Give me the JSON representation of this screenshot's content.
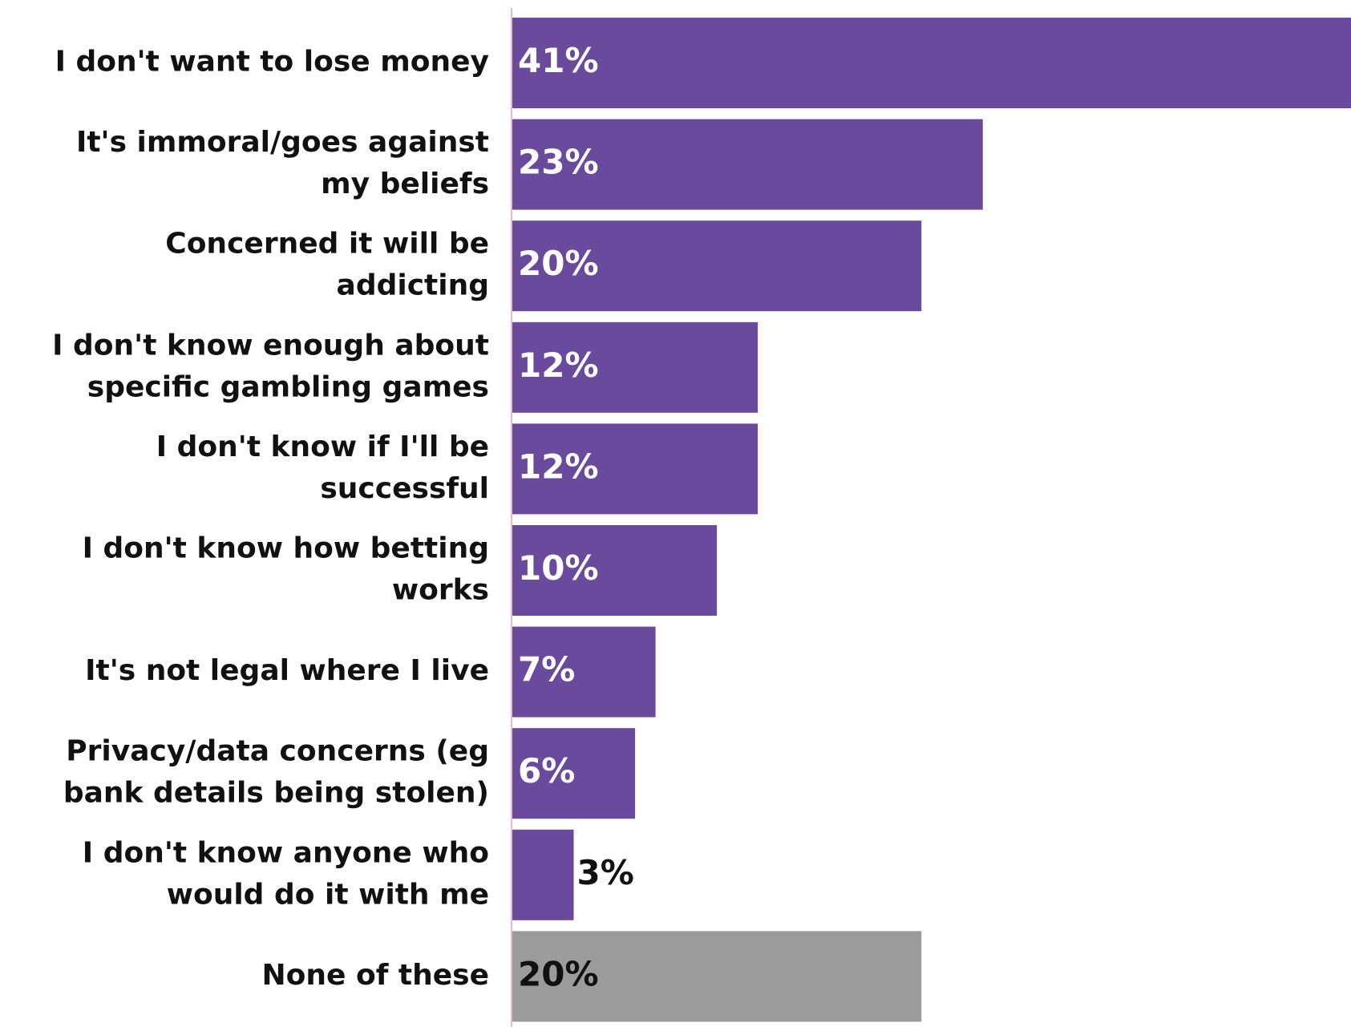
{
  "chart_data": {
    "type": "bar",
    "orientation": "horizontal",
    "categories": [
      [
        "I don't want to lose money"
      ],
      [
        "It's immoral/goes against",
        "my beliefs"
      ],
      [
        "Concerned it will be",
        "addicting"
      ],
      [
        "I don't know enough about",
        "specific gambling games"
      ],
      [
        "I don't know if I'll be",
        "successful"
      ],
      [
        "I don't know how betting",
        "works"
      ],
      [
        "It's not legal where I live"
      ],
      [
        "Privacy/data concerns (eg",
        "bank details being stolen)"
      ],
      [
        "I don't know anyone who",
        "would do it with me"
      ],
      [
        "None of these"
      ]
    ],
    "values": [
      41,
      23,
      20,
      12,
      12,
      10,
      7,
      6,
      3,
      20
    ],
    "value_labels": [
      "41%",
      "23%",
      "20%",
      "12%",
      "12%",
      "10%",
      "7%",
      "6%",
      "3%",
      "20%"
    ],
    "bar_colors": [
      "#6a4a9c",
      "#6a4a9c",
      "#6a4a9c",
      "#6a4a9c",
      "#6a4a9c",
      "#6a4a9c",
      "#6a4a9c",
      "#6a4a9c",
      "#6a4a9c",
      "#9b9b9b"
    ],
    "value_label_colors": [
      "#ffffff",
      "#ffffff",
      "#ffffff",
      "#ffffff",
      "#ffffff",
      "#ffffff",
      "#ffffff",
      "#ffffff",
      "#111111",
      "#111111"
    ],
    "axis_line_color": "#f2b8c6",
    "xlim": [
      0,
      41
    ],
    "title": "",
    "xlabel": "",
    "ylabel": "",
    "grid": false,
    "legend": "none"
  }
}
